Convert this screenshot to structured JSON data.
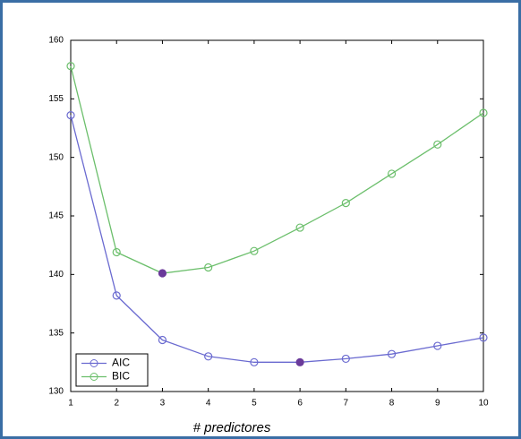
{
  "chart_data": {
    "type": "line",
    "x_label": "# predictores",
    "x": [
      1,
      2,
      3,
      4,
      5,
      6,
      7,
      8,
      9,
      10
    ],
    "series": [
      {
        "name": "AIC",
        "color": "#6a6ad0",
        "highlight_color": "#6a3a9a",
        "highlight": 5,
        "values": [
          153.6,
          138.2,
          134.4,
          133.0,
          132.5,
          132.5,
          132.8,
          133.2,
          133.9,
          134.6
        ]
      },
      {
        "name": "BIC",
        "color": "#6cbf6c",
        "highlight_color": "#6a3a9a",
        "highlight": 2,
        "values": [
          157.8,
          141.9,
          140.1,
          140.6,
          142.0,
          144.0,
          146.1,
          148.6,
          151.1,
          153.8
        ]
      }
    ],
    "xlim": [
      1,
      10
    ],
    "xticks": [
      1,
      2,
      3,
      4,
      5,
      6,
      7,
      8,
      9,
      10
    ],
    "ylim": [
      130,
      160
    ],
    "yticks": [
      130,
      135,
      140,
      145,
      150,
      155,
      160
    ],
    "grid": false,
    "legend": "lower-left"
  }
}
